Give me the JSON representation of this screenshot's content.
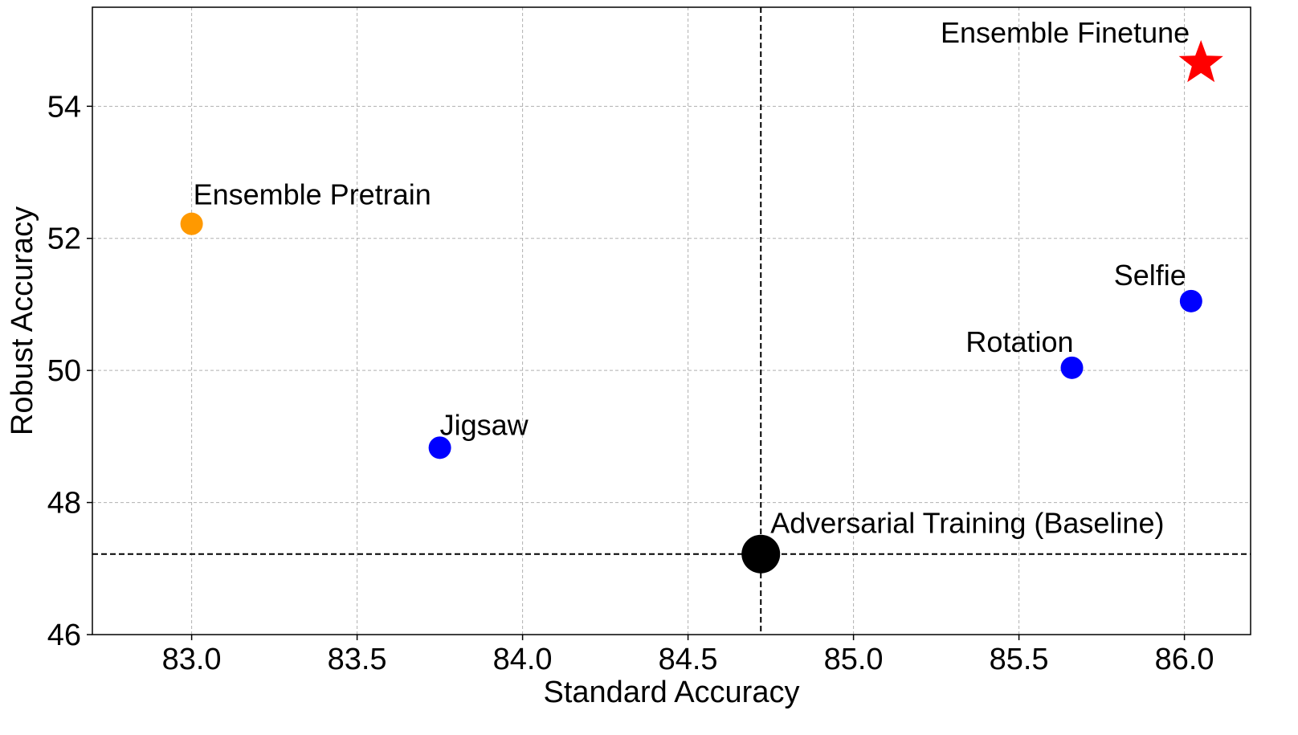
{
  "chart_data": {
    "type": "scatter",
    "title": "",
    "xlabel": "Standard Accuracy",
    "ylabel": "Robust Accuracy",
    "xlim": [
      82.7,
      86.2
    ],
    "ylim": [
      46,
      55.5
    ],
    "xticks": [
      "83.0",
      "83.5",
      "84.0",
      "84.5",
      "85.0",
      "85.5",
      "86.0"
    ],
    "yticks": [
      "46",
      "48",
      "50",
      "52",
      "54"
    ],
    "grid": true,
    "reference_lines": {
      "x": 84.72,
      "y": 47.22,
      "style": "dashed"
    },
    "points": [
      {
        "label": "Ensemble Finetune",
        "x": 86.05,
        "y": 54.65,
        "color": "#ff0000",
        "marker": "star",
        "size": "large"
      },
      {
        "label": "Ensemble Pretrain",
        "x": 83.0,
        "y": 52.22,
        "color": "#ff9900",
        "marker": "circle",
        "size": "medium"
      },
      {
        "label": "Selfie",
        "x": 86.02,
        "y": 51.05,
        "color": "#0000ff",
        "marker": "circle",
        "size": "medium"
      },
      {
        "label": "Rotation",
        "x": 85.66,
        "y": 50.04,
        "color": "#0000ff",
        "marker": "circle",
        "size": "medium"
      },
      {
        "label": "Jigsaw",
        "x": 83.75,
        "y": 48.83,
        "color": "#0000ff",
        "marker": "circle",
        "size": "medium"
      },
      {
        "label": "Adversarial Training (Baseline)",
        "x": 84.72,
        "y": 47.22,
        "color": "#000000",
        "marker": "circle",
        "size": "large"
      }
    ]
  }
}
